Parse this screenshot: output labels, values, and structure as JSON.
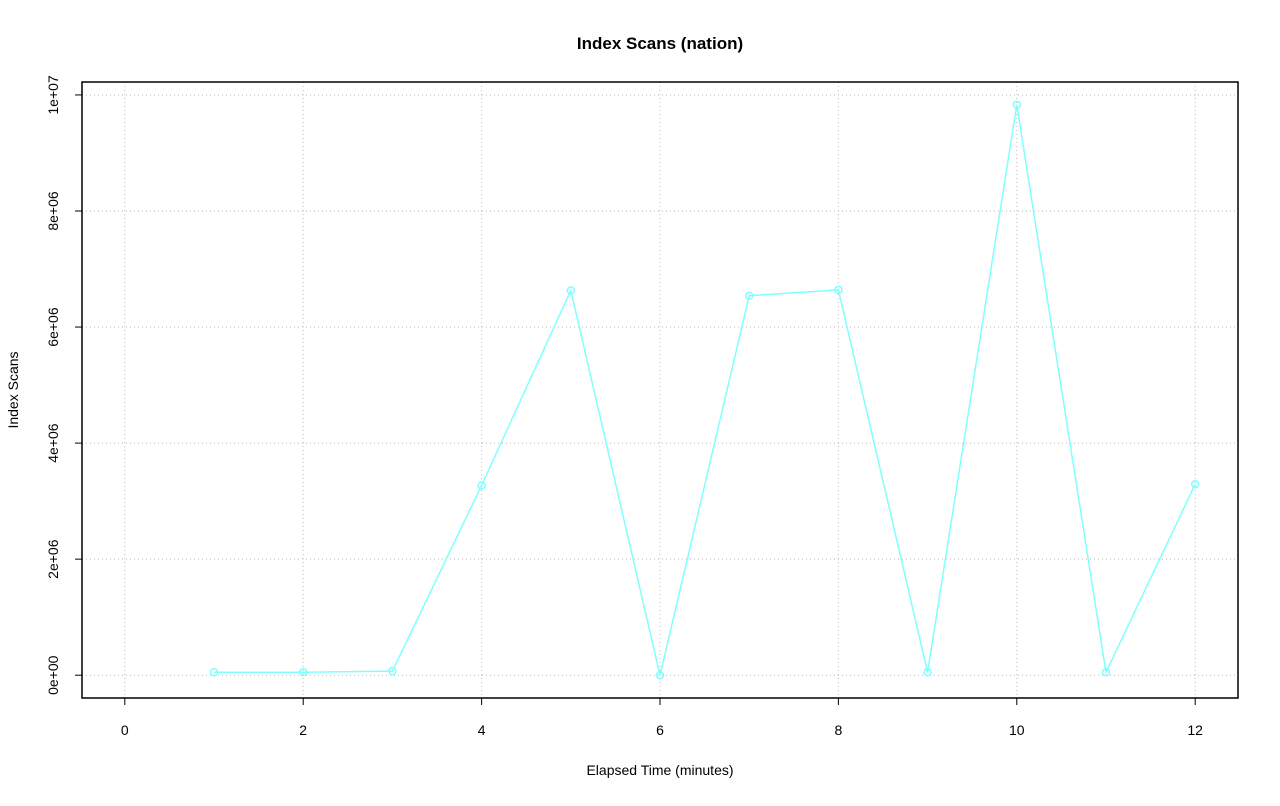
{
  "chart_data": {
    "type": "line",
    "title": "Index Scans (nation)",
    "x_label": "Elapsed Time (minutes)",
    "y_label": "Index Scans",
    "x": [
      1,
      2,
      3,
      4,
      5,
      6,
      7,
      8,
      9,
      10,
      11,
      12
    ],
    "series": [
      {
        "name": "Index Scans",
        "color": "#80ffff",
        "values": [
          50000,
          50000,
          70000,
          3270000,
          6630000,
          0,
          6540000,
          6640000,
          50000,
          9830000,
          50000,
          3290000
        ]
      }
    ],
    "xlim": [
      -0.48,
      12.48
    ],
    "xticks": [
      0,
      2,
      4,
      6,
      8,
      10,
      12
    ],
    "ylim": [
      -393000,
      10223000
    ],
    "yticks": [
      {
        "value": 0,
        "label": "0e+00"
      },
      {
        "value": 2000000,
        "label": "2e+06"
      },
      {
        "value": 4000000,
        "label": "4e+06"
      },
      {
        "value": 6000000,
        "label": "6e+06"
      },
      {
        "value": 8000000,
        "label": "8e+06"
      },
      {
        "value": 10000000,
        "label": "1e+07"
      }
    ],
    "grid": true
  }
}
